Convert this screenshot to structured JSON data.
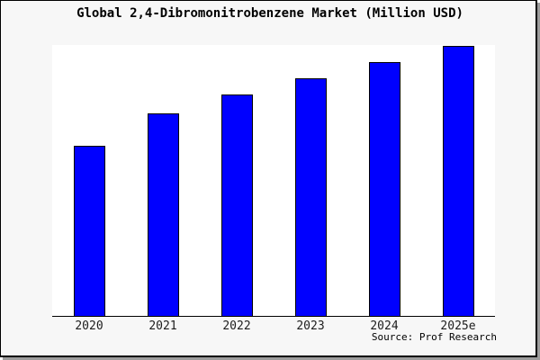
{
  "colors": {
    "bar_fill": "#0000ff",
    "bar_border": "#000000",
    "frame_background": "#f7f7f7",
    "plot_background": "#ffffff",
    "axis_line": "#000000",
    "frame_border": "#000000",
    "frame_shadow": "#9c9c9c"
  },
  "chart_data": {
    "type": "bar",
    "title": "Global 2,4-Dibromonitrobenzene Market (Million USD)",
    "categories": [
      "2020",
      "2021",
      "2022",
      "2023",
      "2024",
      "2025e"
    ],
    "values": [
      63,
      75,
      82,
      88,
      94,
      100
    ],
    "value_units": "relative bar height, % of tallest (2025e) bar; no numeric y-axis shown",
    "xlabel": "",
    "ylabel": "",
    "ylim": [
      0,
      100
    ],
    "y_axis_visible": false,
    "gridlines": false,
    "legend": "none",
    "bar_color": "#0000ff",
    "source": "Source: Prof Research"
  }
}
